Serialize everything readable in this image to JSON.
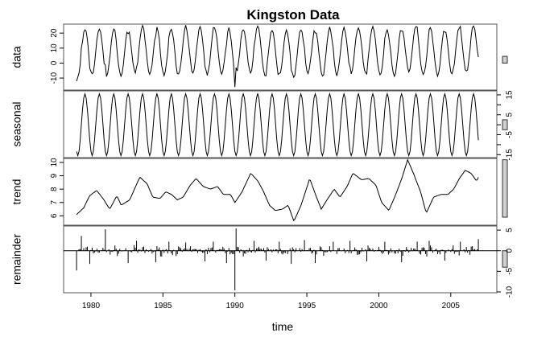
{
  "chart_data": {
    "type": "line",
    "title": "Kingston Data",
    "xlabel": "time",
    "xlim": [
      1978.1,
      2008.2
    ],
    "x_ticks": [
      1980,
      1985,
      1990,
      1995,
      2000,
      2005
    ],
    "x_tick_labels": [
      "1980",
      "1985",
      "1990",
      "1995",
      "2000",
      "2005"
    ],
    "series_start": 1979.0,
    "series_frequency": 12,
    "series_length": 336,
    "panels": [
      {
        "name": "data",
        "ylabel": "data",
        "axis_side": "left",
        "ylim": [
          -18,
          26
        ],
        "ticks": [
          -10,
          0,
          10,
          20
        ],
        "tick_labels": [
          "-10",
          "0",
          "10",
          "20"
        ],
        "scale_bar": [
          0,
          4.5
        ]
      },
      {
        "name": "seasonal",
        "ylabel": "seasonal",
        "axis_side": "right",
        "ylim": [
          -16.5,
          17
        ],
        "ticks": [
          -15,
          -10,
          -5,
          0,
          5,
          10,
          15
        ],
        "tick_labels": [
          "-15",
          "",
          "-5",
          "",
          "5",
          "",
          "15"
        ],
        "scale_bar": [
          -2.5,
          2.5
        ],
        "amplitude": 15.5,
        "phase_peak_month": 7
      },
      {
        "name": "trend",
        "ylabel": "trend",
        "axis_side": "left",
        "ylim": [
          5.3,
          10.3
        ],
        "ticks": [
          6,
          7,
          8,
          9,
          10
        ],
        "tick_labels": [
          "6",
          "7",
          "8",
          "9",
          "10"
        ],
        "scale_bar": [
          5.9,
          10.2
        ],
        "anchors": [
          [
            1979.0,
            6.1
          ],
          [
            1979.5,
            6.6
          ],
          [
            1979.9,
            7.5
          ],
          [
            1980.4,
            7.9
          ],
          [
            1980.9,
            7.2
          ],
          [
            1981.3,
            6.5
          ],
          [
            1981.8,
            7.5
          ],
          [
            1982.1,
            6.8
          ],
          [
            1982.7,
            7.2
          ],
          [
            1983.1,
            8.2
          ],
          [
            1983.4,
            8.9
          ],
          [
            1983.9,
            8.4
          ],
          [
            1984.3,
            7.4
          ],
          [
            1984.8,
            7.3
          ],
          [
            1985.2,
            7.8
          ],
          [
            1985.6,
            7.6
          ],
          [
            1986.0,
            7.2
          ],
          [
            1986.4,
            7.4
          ],
          [
            1986.9,
            8.3
          ],
          [
            1987.3,
            8.8
          ],
          [
            1987.8,
            8.2
          ],
          [
            1988.3,
            8.0
          ],
          [
            1988.8,
            8.2
          ],
          [
            1989.2,
            7.6
          ],
          [
            1989.7,
            7.6
          ],
          [
            1990.0,
            7.0
          ],
          [
            1990.5,
            7.8
          ],
          [
            1991.1,
            9.2
          ],
          [
            1991.6,
            8.6
          ],
          [
            1992.0,
            7.8
          ],
          [
            1992.4,
            6.8
          ],
          [
            1992.8,
            6.4
          ],
          [
            1993.3,
            6.5
          ],
          [
            1993.7,
            6.8
          ],
          [
            1994.1,
            5.6
          ],
          [
            1994.6,
            6.8
          ],
          [
            1995.2,
            8.8
          ],
          [
            1995.6,
            7.6
          ],
          [
            1996.0,
            6.5
          ],
          [
            1996.4,
            7.2
          ],
          [
            1996.9,
            8.0
          ],
          [
            1997.3,
            7.4
          ],
          [
            1997.8,
            8.2
          ],
          [
            1998.2,
            9.2
          ],
          [
            1998.8,
            8.7
          ],
          [
            1999.3,
            8.8
          ],
          [
            1999.8,
            8.3
          ],
          [
            2000.2,
            7.0
          ],
          [
            2000.7,
            6.4
          ],
          [
            2001.1,
            7.4
          ],
          [
            2001.6,
            8.8
          ],
          [
            2002.0,
            10.2
          ],
          [
            2002.4,
            9.2
          ],
          [
            2002.9,
            7.8
          ],
          [
            2003.3,
            6.2
          ],
          [
            2003.8,
            7.4
          ],
          [
            2004.3,
            7.6
          ],
          [
            2004.8,
            7.6
          ],
          [
            2005.2,
            8.0
          ],
          [
            2005.6,
            8.8
          ],
          [
            2006.0,
            9.4
          ],
          [
            2006.4,
            9.2
          ],
          [
            2006.8,
            8.6
          ],
          [
            2007.2,
            9.6
          ],
          [
            2007.9,
            9.7
          ]
        ]
      },
      {
        "name": "remainder",
        "ylabel": "remainder",
        "axis_side": "right",
        "ylim": [
          -10.2,
          6
        ],
        "ticks": [
          -10,
          -5,
          0,
          5
        ],
        "tick_labels": [
          "-10",
          "-5",
          "0",
          "5"
        ],
        "scale_bar": [
          -4,
          0
        ],
        "spikes": [
          [
            1979.02,
            -4.8
          ],
          [
            1979.35,
            3.6
          ],
          [
            1981.0,
            5.2
          ],
          [
            1979.9,
            -3.2
          ],
          [
            1982.6,
            -3.0
          ],
          [
            1983.2,
            2.4
          ],
          [
            1984.5,
            -2.8
          ],
          [
            1985.4,
            2.2
          ],
          [
            1986.6,
            2.0
          ],
          [
            1987.9,
            -2.6
          ],
          [
            1988.5,
            2.2
          ],
          [
            1989.4,
            -3.0
          ],
          [
            1990.0,
            -9.6
          ],
          [
            1990.05,
            5.4
          ],
          [
            1991.3,
            2.4
          ],
          [
            1992.2,
            -2.4
          ],
          [
            1993.1,
            2.2
          ],
          [
            1993.9,
            -3.2
          ],
          [
            1994.8,
            2.6
          ],
          [
            1995.6,
            -3.0
          ],
          [
            1996.8,
            2.2
          ],
          [
            1998.0,
            2.4
          ],
          [
            1999.2,
            -2.6
          ],
          [
            2000.4,
            2.2
          ],
          [
            2001.6,
            -2.8
          ],
          [
            2002.7,
            2.2
          ],
          [
            2003.5,
            2.4
          ],
          [
            2004.6,
            -2.4
          ],
          [
            2005.7,
            2.2
          ],
          [
            2006.9,
            2.8
          ]
        ]
      }
    ]
  }
}
